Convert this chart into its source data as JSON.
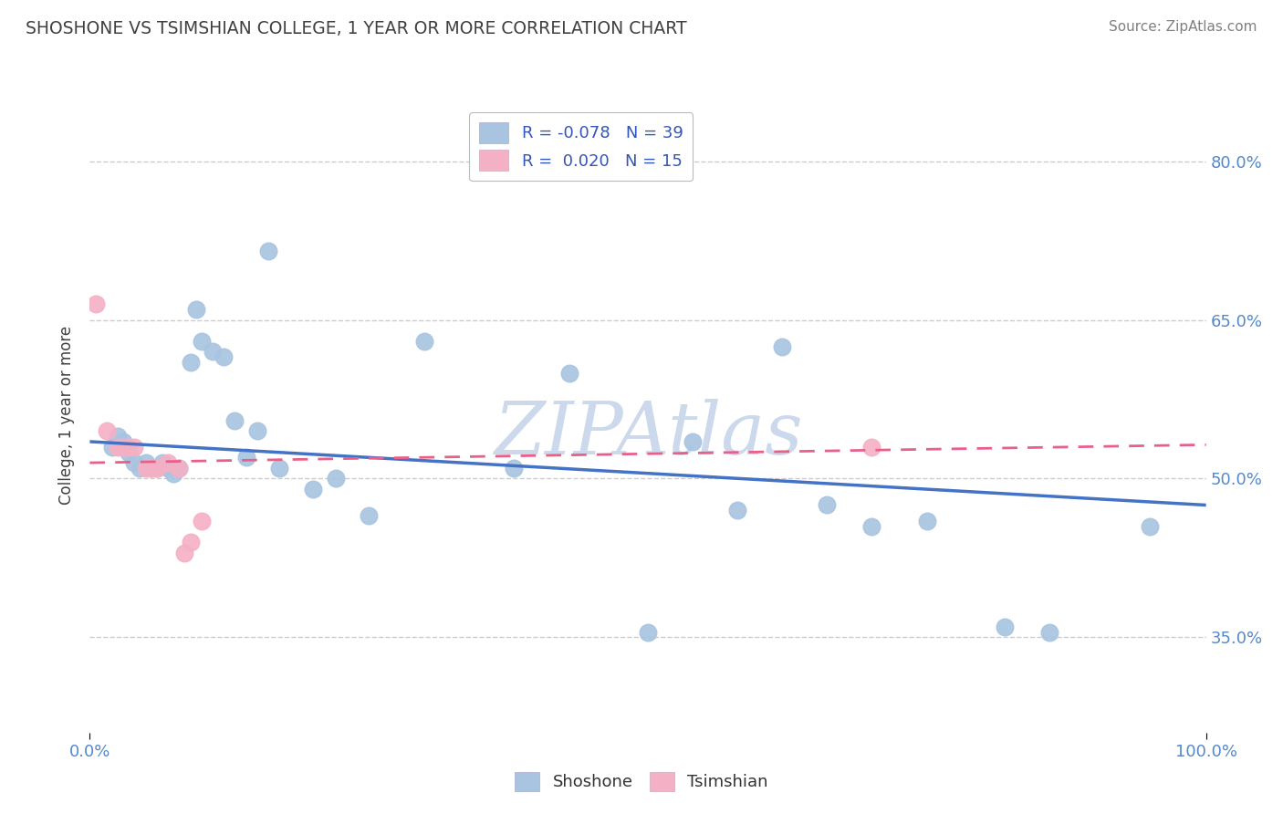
{
  "title": "SHOSHONE VS TSIMSHIAN COLLEGE, 1 YEAR OR MORE CORRELATION CHART",
  "source_text": "Source: ZipAtlas.com",
  "ylabel": "College, 1 year or more",
  "xlim": [
    0.0,
    1.0
  ],
  "ylim": [
    0.26,
    0.86
  ],
  "yticks": [
    0.35,
    0.5,
    0.65,
    0.8
  ],
  "xticks": [
    0.0,
    1.0
  ],
  "shoshone_x": [
    0.02,
    0.025,
    0.03,
    0.035,
    0.04,
    0.045,
    0.05,
    0.055,
    0.06,
    0.065,
    0.07,
    0.075,
    0.08,
    0.09,
    0.095,
    0.1,
    0.11,
    0.12,
    0.13,
    0.14,
    0.15,
    0.16,
    0.17,
    0.2,
    0.22,
    0.25,
    0.3,
    0.38,
    0.43,
    0.5,
    0.54,
    0.58,
    0.62,
    0.66,
    0.7,
    0.75,
    0.82,
    0.86,
    0.95
  ],
  "shoshone_y": [
    0.53,
    0.54,
    0.535,
    0.525,
    0.515,
    0.51,
    0.515,
    0.51,
    0.51,
    0.515,
    0.51,
    0.505,
    0.51,
    0.61,
    0.66,
    0.63,
    0.62,
    0.615,
    0.555,
    0.52,
    0.545,
    0.715,
    0.51,
    0.49,
    0.5,
    0.465,
    0.63,
    0.51,
    0.6,
    0.355,
    0.535,
    0.47,
    0.625,
    0.475,
    0.455,
    0.46,
    0.36,
    0.355,
    0.455
  ],
  "tsimshian_x": [
    0.005,
    0.015,
    0.025,
    0.03,
    0.035,
    0.04,
    0.05,
    0.055,
    0.06,
    0.07,
    0.08,
    0.085,
    0.09,
    0.1,
    0.7
  ],
  "tsimshian_y": [
    0.665,
    0.545,
    0.53,
    0.53,
    0.53,
    0.53,
    0.51,
    0.51,
    0.51,
    0.515,
    0.51,
    0.43,
    0.44,
    0.46,
    0.53
  ],
  "shoshone_R": -0.078,
  "shoshone_N": 39,
  "tsimshian_R": 0.02,
  "tsimshian_N": 15,
  "shoshone_color": "#a8c4e0",
  "tsimshian_color": "#f4b0c4",
  "shoshone_line_color": "#4472c4",
  "tsimshian_line_color": "#e8608a",
  "background_color": "#ffffff",
  "grid_color": "#cccccc",
  "watermark_text": "ZIPAtlas",
  "watermark_color": "#ccd8ec",
  "title_color": "#404040",
  "axis_tick_color": "#5588cc",
  "legend_R_color": "#3355bb",
  "source_color": "#808080"
}
